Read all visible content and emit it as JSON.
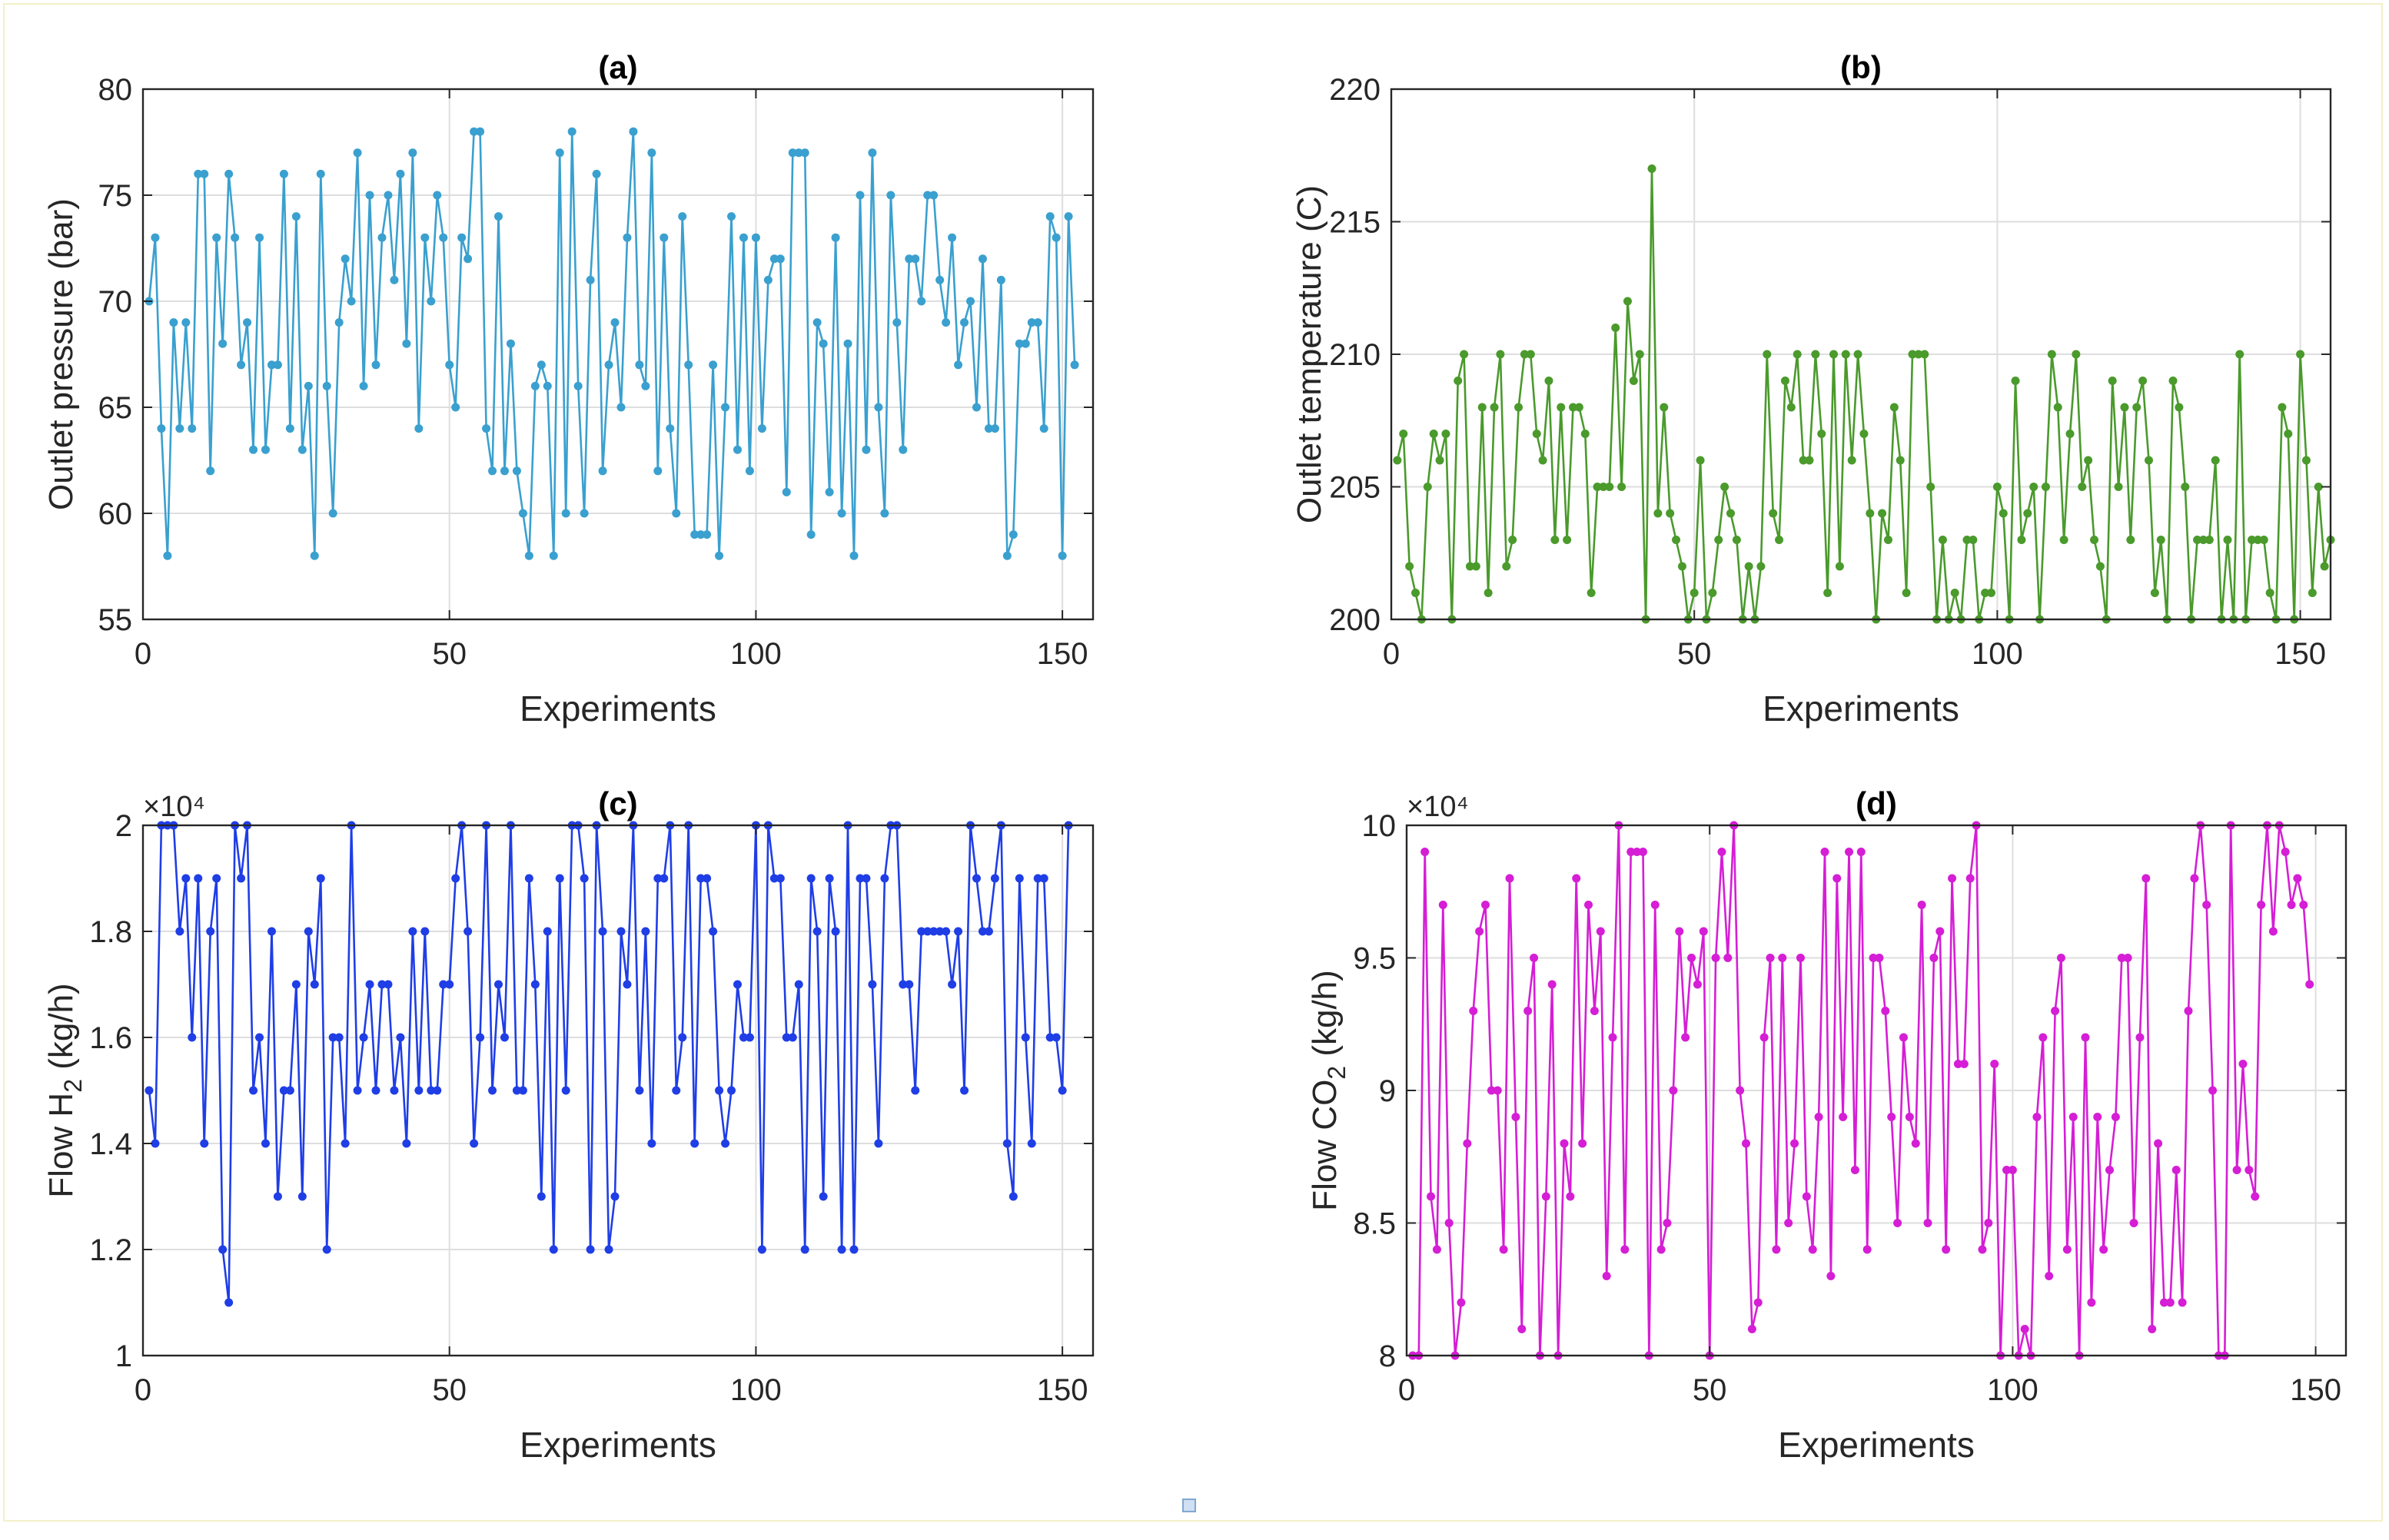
{
  "figure_marker": "small-square-icon",
  "chart_data": [
    {
      "id": "a",
      "type": "line",
      "title": "(a)",
      "xlabel": "Experiments",
      "ylabel": "Outlet pressure (bar)",
      "ylabel_sub": "",
      "ylabel_tail": "",
      "color": "#3aa0cf",
      "xlim": [
        0,
        155
      ],
      "ylim": [
        55,
        80
      ],
      "xticks": [
        0,
        50,
        100,
        150
      ],
      "yticks": [
        55,
        60,
        65,
        70,
        75,
        80
      ],
      "ytick_labels": [
        "55",
        "60",
        "65",
        "70",
        "75",
        "80"
      ],
      "exponent": "",
      "grid": true,
      "values": [
        70,
        73,
        64,
        58,
        69,
        64,
        69,
        64,
        76,
        76,
        62,
        73,
        68,
        76,
        73,
        67,
        69,
        63,
        73,
        63,
        67,
        67,
        76,
        64,
        74,
        63,
        66,
        58,
        76,
        66,
        60,
        69,
        72,
        70,
        77,
        66,
        75,
        67,
        73,
        75,
        71,
        76,
        68,
        77,
        64,
        73,
        70,
        75,
        73,
        67,
        65,
        73,
        72,
        78,
        78,
        64,
        62,
        74,
        62,
        68,
        62,
        60,
        58,
        66,
        67,
        66,
        58,
        77,
        60,
        78,
        66,
        60,
        71,
        76,
        62,
        67,
        69,
        65,
        73,
        78,
        67,
        66,
        77,
        62,
        73,
        64,
        60,
        74,
        67,
        59,
        59,
        59,
        67,
        58,
        65,
        74,
        63,
        73,
        62,
        73,
        64,
        71,
        72,
        72,
        61,
        77,
        77,
        77,
        59,
        69,
        68,
        61,
        73,
        60,
        68,
        58,
        75,
        63,
        77,
        65,
        60,
        75,
        69,
        63,
        72,
        72,
        70,
        75,
        75,
        71,
        69,
        73,
        67,
        69,
        70,
        65,
        72,
        64,
        64,
        71,
        58,
        59,
        68,
        68,
        69,
        69,
        64,
        74,
        73,
        58,
        74,
        67
      ]
    },
    {
      "id": "b",
      "type": "line",
      "title": "(b)",
      "xlabel": "Experiments",
      "ylabel": "Outlet temperature (C)",
      "ylabel_sub": "",
      "ylabel_tail": "",
      "color": "#4a9a2c",
      "xlim": [
        0,
        155
      ],
      "ylim": [
        200,
        220
      ],
      "xticks": [
        0,
        50,
        100,
        150
      ],
      "yticks": [
        200,
        205,
        210,
        215,
        220
      ],
      "ytick_labels": [
        "200",
        "205",
        "210",
        "215",
        "220"
      ],
      "exponent": "",
      "grid": true,
      "values": [
        206,
        207,
        202,
        201,
        200,
        205,
        207,
        206,
        207,
        200,
        209,
        210,
        202,
        202,
        208,
        201,
        208,
        210,
        202,
        203,
        208,
        210,
        210,
        207,
        206,
        209,
        203,
        208,
        203,
        208,
        208,
        207,
        201,
        205,
        205,
        205,
        211,
        205,
        212,
        209,
        210,
        200,
        217,
        204,
        208,
        204,
        203,
        202,
        200,
        201,
        206,
        200,
        201,
        203,
        205,
        204,
        203,
        200,
        202,
        200,
        202,
        210,
        204,
        203,
        209,
        208,
        210,
        206,
        206,
        210,
        207,
        201,
        210,
        202,
        210,
        206,
        210,
        207,
        204,
        200,
        204,
        203,
        208,
        206,
        201,
        210,
        210,
        210,
        205,
        200,
        203,
        200,
        201,
        200,
        203,
        203,
        200,
        201,
        201,
        205,
        204,
        200,
        209,
        203,
        204,
        205,
        200,
        205,
        210,
        208,
        203,
        207,
        210,
        205,
        206,
        203,
        202,
        200,
        209,
        205,
        208,
        203,
        208,
        209,
        206,
        201,
        203,
        200,
        209,
        208,
        205,
        200,
        203,
        203,
        203,
        206,
        200,
        203,
        200,
        210,
        200,
        203,
        203,
        203,
        201,
        200,
        208,
        207,
        200,
        210,
        206,
        201,
        205,
        202,
        203
      ]
    },
    {
      "id": "c",
      "type": "line",
      "title": "(c)",
      "xlabel": "Experiments",
      "ylabel": "Flow H",
      "ylabel_sub": "2",
      "ylabel_tail": " (kg/h)",
      "color": "#1f3ee6",
      "xlim": [
        0,
        155
      ],
      "ylim": [
        1.0,
        2.0
      ],
      "xticks": [
        0,
        50,
        100,
        150
      ],
      "yticks": [
        1.0,
        1.2,
        1.4,
        1.6,
        1.8,
        2.0
      ],
      "ytick_labels": [
        "1",
        "1.2",
        "1.4",
        "1.6",
        "1.8",
        "2"
      ],
      "exponent": "×10⁴",
      "grid": true,
      "values": [
        1.5,
        1.4,
        2.0,
        2.0,
        2.0,
        1.8,
        1.9,
        1.6,
        1.9,
        1.4,
        1.8,
        1.9,
        1.2,
        1.1,
        2.0,
        1.9,
        2.0,
        1.5,
        1.6,
        1.4,
        1.8,
        1.3,
        1.5,
        1.5,
        1.7,
        1.3,
        1.8,
        1.7,
        1.9,
        1.2,
        1.6,
        1.6,
        1.4,
        2.0,
        1.5,
        1.6,
        1.7,
        1.5,
        1.7,
        1.7,
        1.5,
        1.6,
        1.4,
        1.8,
        1.5,
        1.8,
        1.5,
        1.5,
        1.7,
        1.7,
        1.9,
        2.0,
        1.8,
        1.4,
        1.6,
        2.0,
        1.5,
        1.7,
        1.6,
        2.0,
        1.5,
        1.5,
        1.9,
        1.7,
        1.3,
        1.8,
        1.2,
        1.9,
        1.5,
        2.0,
        2.0,
        1.9,
        1.2,
        2.0,
        1.8,
        1.2,
        1.3,
        1.8,
        1.7,
        2.0,
        1.5,
        1.8,
        1.4,
        1.9,
        1.9,
        2.0,
        1.5,
        1.6,
        2.0,
        1.4,
        1.9,
        1.9,
        1.8,
        1.5,
        1.4,
        1.5,
        1.7,
        1.6,
        1.6,
        2.0,
        1.2,
        2.0,
        1.9,
        1.9,
        1.6,
        1.6,
        1.7,
        1.2,
        1.9,
        1.8,
        1.3,
        1.9,
        1.8,
        1.2,
        2.0,
        1.2,
        1.9,
        1.9,
        1.7,
        1.4,
        1.9,
        2.0,
        2.0,
        1.7,
        1.7,
        1.5,
        1.8,
        1.8,
        1.8,
        1.8,
        1.8,
        1.7,
        1.8,
        1.5,
        2.0,
        1.9,
        1.8,
        1.8,
        1.9,
        2.0,
        1.4,
        1.3,
        1.9,
        1.6,
        1.4,
        1.9,
        1.9,
        1.6,
        1.6,
        1.5,
        2.0
      ]
    },
    {
      "id": "d",
      "type": "line",
      "title": "(d)",
      "xlabel": "Experiments",
      "ylabel": "Flow CO",
      "ylabel_sub": "2",
      "ylabel_tail": " (kg/h)",
      "color": "#d51ed5",
      "xlim": [
        0,
        155
      ],
      "ylim": [
        8.0,
        10.0
      ],
      "xticks": [
        0,
        50,
        100,
        150
      ],
      "yticks": [
        8.0,
        8.5,
        9.0,
        9.5,
        10.0
      ],
      "ytick_labels": [
        "8",
        "8.5",
        "9",
        "9.5",
        "10"
      ],
      "exponent": "×10⁴",
      "grid": true,
      "values": [
        8.0,
        8.0,
        9.9,
        8.6,
        8.4,
        9.7,
        8.5,
        8.0,
        8.2,
        8.8,
        9.3,
        9.6,
        9.7,
        9.0,
        9.0,
        8.4,
        9.8,
        8.9,
        8.1,
        9.3,
        9.5,
        8.0,
        8.6,
        9.4,
        8.0,
        8.8,
        8.6,
        9.8,
        8.8,
        9.7,
        9.3,
        9.6,
        8.3,
        9.2,
        10.0,
        8.4,
        9.9,
        9.9,
        9.9,
        8.0,
        9.7,
        8.4,
        8.5,
        9.0,
        9.6,
        9.2,
        9.5,
        9.4,
        9.6,
        8.0,
        9.5,
        9.9,
        9.5,
        10.0,
        9.0,
        8.8,
        8.1,
        8.2,
        9.2,
        9.5,
        8.4,
        9.5,
        8.5,
        8.8,
        9.5,
        8.6,
        8.4,
        8.9,
        9.9,
        8.3,
        9.8,
        8.9,
        9.9,
        8.7,
        9.9,
        8.4,
        9.5,
        9.5,
        9.3,
        8.9,
        8.5,
        9.2,
        8.9,
        8.8,
        9.7,
        8.5,
        9.5,
        9.6,
        8.4,
        9.8,
        9.1,
        9.1,
        9.8,
        10.0,
        8.4,
        8.5,
        9.1,
        8.0,
        8.7,
        8.7,
        8.0,
        8.1,
        8.0,
        8.9,
        9.2,
        8.3,
        9.3,
        9.5,
        8.4,
        8.9,
        8.0,
        9.2,
        8.2,
        8.9,
        8.4,
        8.7,
        8.9,
        9.5,
        9.5,
        8.5,
        9.2,
        9.8,
        8.1,
        8.8,
        8.2,
        8.2,
        8.7,
        8.2,
        9.3,
        9.8,
        10.0,
        9.7,
        9.0,
        8.0,
        8.0,
        10.0,
        8.7,
        9.1,
        8.7,
        8.6,
        9.7,
        10.0,
        9.6,
        10.0,
        9.9,
        9.7,
        9.8,
        9.7,
        9.4
      ]
    }
  ]
}
